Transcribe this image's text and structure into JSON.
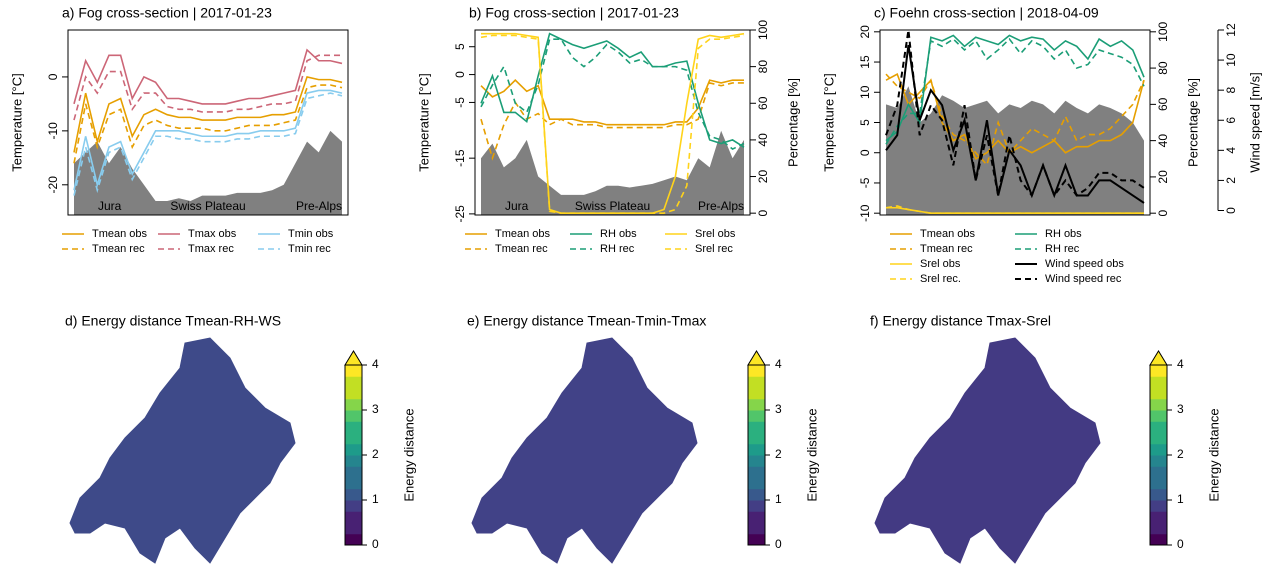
{
  "chart_data": [
    {
      "type": "line",
      "title": "a) Fog cross-section | 2017-01-23",
      "ylabel": "Temperature [°C]",
      "ylim": [
        -25.6,
        8.7
      ],
      "yticks": [
        -20,
        -10,
        0
      ],
      "legend_columns": 3,
      "annotations": [
        "Jura",
        "Swiss Plateau",
        "Pre-Alps"
      ],
      "terrain": {
        "color": "#808080",
        "values": [
          -16,
          -14,
          -12,
          -16,
          -13,
          -17,
          -20,
          -23,
          -23,
          -22.5,
          -23,
          -22,
          -22,
          -22,
          -21.5,
          -21.5,
          -21.5,
          -21,
          -20,
          -16,
          -12,
          -14,
          -10,
          -12
        ]
      },
      "series": [
        {
          "name": "Tmean obs",
          "color": "#E69F00",
          "linestyle": "solid",
          "values": [
            -14,
            -3,
            -12,
            -5,
            -4,
            -11,
            -7,
            -6,
            -7,
            -7.5,
            -7.5,
            -8,
            -8,
            -8,
            -7.5,
            -7.5,
            -7.5,
            -7,
            -7,
            -6.5,
            0,
            -0.5,
            -0.5,
            -1
          ]
        },
        {
          "name": "Tmean rec",
          "color": "#E69F00",
          "linestyle": "dashed",
          "values": [
            -16,
            -5,
            -13,
            -7,
            -6,
            -13,
            -9,
            -8,
            -9,
            -9.5,
            -9.5,
            -9.5,
            -10,
            -10,
            -9.5,
            -9,
            -9,
            -9,
            -8.5,
            -8,
            -2,
            -1.5,
            -1.5,
            -2
          ]
        },
        {
          "name": "Tmax obs",
          "color": "#CC6677",
          "linestyle": "solid",
          "values": [
            -5,
            3,
            -1,
            4,
            4,
            -4,
            0,
            -1,
            -4,
            -4,
            -4.5,
            -5,
            -5,
            -5,
            -4.5,
            -4,
            -4,
            -3.5,
            -3,
            -2.5,
            5,
            3,
            3,
            2.5
          ]
        },
        {
          "name": "Tmax rec",
          "color": "#CC6677",
          "linestyle": "dashed",
          "values": [
            -8,
            0,
            -3,
            1,
            1,
            -6,
            -3,
            -3,
            -5.5,
            -6,
            -6,
            -6.5,
            -6.5,
            -6.5,
            -6,
            -6,
            -5.5,
            -5,
            -5,
            -4.5,
            3,
            4,
            4,
            4
          ]
        },
        {
          "name": "Tmin obs",
          "color": "#88CCEE",
          "linestyle": "solid",
          "values": [
            -21,
            -11,
            -20,
            -13,
            -12,
            -18,
            -14,
            -10,
            -10,
            -10,
            -10.5,
            -11,
            -11,
            -11,
            -10.5,
            -10.5,
            -10,
            -10,
            -10,
            -9.5,
            -3,
            -2.5,
            -2.5,
            -3
          ]
        },
        {
          "name": "Tmin rec",
          "color": "#88CCEE",
          "linestyle": "dashed",
          "values": [
            -22,
            -13,
            -21,
            -14,
            -13,
            -19,
            -15,
            -11,
            -11,
            -11.5,
            -11.5,
            -12,
            -12,
            -12,
            -11.5,
            -11.5,
            -11,
            -11,
            -11,
            -10.5,
            -4,
            -3.5,
            -3,
            -3.5
          ]
        }
      ]
    },
    {
      "type": "line",
      "title": "b) Fog cross-section | 2017-01-23",
      "ylabel": "Temperature [°C]",
      "y2label": "Percentage [%]",
      "ylim": [
        -25.2,
        8
      ],
      "yticks": [
        -25,
        -15,
        -5,
        0,
        5
      ],
      "y2lim": [
        -1,
        100
      ],
      "y2ticks": [
        0,
        20,
        40,
        60,
        80,
        100
      ],
      "legend_columns": 3,
      "annotations": [
        "Jura",
        "Swiss Plateau",
        "Pre-Alps"
      ],
      "terrain": {
        "color": "#808080",
        "axis": "y2",
        "values": [
          30,
          38,
          25,
          30,
          40,
          20,
          15,
          10,
          10,
          10,
          12,
          15,
          15,
          14,
          15,
          16,
          18,
          20,
          18,
          30,
          25,
          45,
          30,
          40
        ]
      },
      "series": [
        {
          "name": "Tmean obs",
          "color": "#E69F00",
          "linestyle": "solid",
          "values": [
            -2,
            -4,
            -3,
            -1,
            -3,
            -2,
            -8,
            -8,
            -8,
            -8.5,
            -8.5,
            -9,
            -9,
            -9,
            -9,
            -9,
            -9,
            -8.5,
            -8.5,
            -6,
            -1,
            -1.5,
            -1,
            -1
          ]
        },
        {
          "name": "Tmean rec",
          "color": "#E69F00",
          "linestyle": "dashed",
          "values": [
            -8,
            -15,
            -9,
            -5,
            -8,
            -7,
            -9,
            -8,
            -9,
            -9,
            -9,
            -9.5,
            -9.5,
            -9.5,
            -9.5,
            -9.5,
            -9.5,
            -9,
            -9,
            -8,
            -1.5,
            -2,
            -1.5,
            -1.5
          ]
        },
        {
          "name": "RH obs",
          "color": "#1B9E77",
          "linestyle": "solid",
          "axis": "y2",
          "values": [
            60,
            75,
            55,
            55,
            50,
            75,
            98,
            95,
            92,
            90,
            92,
            94,
            90,
            85,
            88,
            80,
            80,
            82,
            83,
            60,
            40,
            38,
            40,
            36
          ]
        },
        {
          "name": "RH rec",
          "color": "#1B9E77",
          "linestyle": "dashed",
          "axis": "y2",
          "values": [
            58,
            70,
            80,
            60,
            55,
            70,
            95,
            95,
            85,
            80,
            85,
            92,
            88,
            82,
            84,
            80,
            80,
            80,
            78,
            55,
            42,
            40,
            35,
            38
          ]
        },
        {
          "name": "Srel obs",
          "color": "#FFD31A",
          "linestyle": "solid",
          "axis": "y2",
          "values": [
            98,
            98,
            98,
            98,
            97,
            96,
            2,
            0,
            0,
            0,
            0,
            0,
            0,
            0,
            0,
            0,
            2,
            20,
            60,
            95,
            97,
            96,
            97,
            98
          ]
        },
        {
          "name": "Srel rec",
          "color": "#FFD31A",
          "linestyle": "dashed",
          "axis": "y2",
          "values": [
            96,
            97,
            97,
            97,
            96,
            95,
            1,
            0,
            0,
            0,
            0,
            0,
            0,
            0,
            0,
            0,
            0,
            2,
            15,
            90,
            95,
            95,
            96,
            97
          ]
        }
      ]
    },
    {
      "type": "line",
      "title": "c) Foehn cross-section | 2018-04-09",
      "ylabel": "Temperature [°C]",
      "y2label": "Percentage [%]",
      "y3label": "Wind speed [m/s]",
      "ylim": [
        -10.3,
        20.3
      ],
      "yticks": [
        -10,
        -5,
        0,
        5,
        10,
        15,
        20
      ],
      "y2lim": [
        -1,
        101
      ],
      "y2ticks": [
        0,
        20,
        40,
        60,
        80,
        100
      ],
      "y3lim": [
        -0.3,
        12
      ],
      "y3ticks": [
        0,
        2,
        4,
        6,
        8,
        10,
        12
      ],
      "legend_columns": 2,
      "terrain": {
        "color": "#808080",
        "axis": "y2",
        "values": [
          60,
          58,
          70,
          50,
          55,
          65,
          62,
          58,
          60,
          62,
          55,
          60,
          58,
          62,
          60,
          55,
          62,
          58,
          55,
          60,
          58,
          55,
          50,
          40
        ]
      },
      "series": [
        {
          "name": "Tmean obs",
          "color": "#E69F00",
          "linestyle": "solid",
          "values": [
            12,
            13,
            8,
            10,
            12,
            5,
            2,
            3,
            -1,
            0,
            2,
            0,
            1,
            0,
            1,
            2,
            0,
            1,
            1,
            2,
            2,
            3,
            5,
            12
          ]
        },
        {
          "name": "Tmean rec",
          "color": "#E69F00",
          "linestyle": "dashed",
          "values": [
            13,
            11,
            10,
            9,
            12,
            6,
            3,
            2,
            0,
            -2,
            5,
            0,
            2,
            4,
            3,
            2,
            6,
            2,
            3,
            3,
            4,
            6,
            8,
            12
          ]
        },
        {
          "name": "Srel obs",
          "color": "#FFD31A",
          "linestyle": "solid",
          "axis": "y2",
          "values": [
            3,
            3,
            2,
            1,
            0,
            0,
            0,
            0,
            0,
            0,
            0,
            0,
            0,
            0,
            0,
            0,
            0,
            0,
            0,
            0,
            0,
            0,
            0,
            0
          ]
        },
        {
          "name": "Srel rec.",
          "color": "#FFD31A",
          "linestyle": "dashed",
          "axis": "y2",
          "values": [
            3,
            4,
            2,
            1,
            0,
            0,
            0,
            0,
            0,
            0,
            0,
            0,
            0,
            0,
            0,
            0,
            0,
            0,
            0,
            0,
            0,
            0,
            0,
            0
          ]
        },
        {
          "name": "RH obs",
          "color": "#1B9E77",
          "linestyle": "solid",
          "axis": "y2",
          "values": [
            40,
            45,
            60,
            50,
            97,
            95,
            98,
            92,
            97,
            95,
            93,
            98,
            95,
            97,
            96,
            90,
            95,
            92,
            85,
            96,
            92,
            95,
            90,
            75
          ]
        },
        {
          "name": "RH rec",
          "color": "#1B9E77",
          "linestyle": "dashed",
          "axis": "y2",
          "values": [
            38,
            48,
            55,
            55,
            95,
            92,
            96,
            90,
            95,
            85,
            90,
            96,
            88,
            95,
            92,
            85,
            90,
            80,
            82,
            90,
            88,
            86,
            82,
            70
          ]
        },
        {
          "name": "Wind speed obs",
          "color": "#000000",
          "linestyle": "solid",
          "axis": "y3",
          "values": [
            4,
            5,
            11,
            6,
            8,
            7,
            4,
            6,
            2,
            6,
            1,
            4,
            3,
            1,
            3,
            1,
            3,
            1,
            1,
            2,
            2,
            1.5,
            1,
            0.5
          ]
        },
        {
          "name": "Wind speed rec",
          "color": "#000000",
          "linestyle": "dashed",
          "axis": "y3",
          "values": [
            5,
            7,
            12,
            5,
            7,
            6,
            3,
            7,
            2,
            5,
            1,
            5,
            2,
            1,
            3,
            1,
            2,
            1,
            1.5,
            2.5,
            2.5,
            2,
            2,
            1.5
          ]
        }
      ]
    },
    {
      "type": "map",
      "title": "d) Energy distance Tmean-RH-WS",
      "color": "#3E4A89",
      "colorbar": {
        "label": "Energy distance",
        "zlim": [
          0,
          4
        ],
        "ticks": [
          0,
          1,
          2,
          3,
          4
        ]
      }
    },
    {
      "type": "map",
      "title": "e) Energy distance Tmean-Tmin-Tmax",
      "color": "#414287",
      "colorbar": {
        "label": "Energy distance",
        "zlim": [
          0,
          4
        ],
        "ticks": [
          0,
          1,
          2,
          3,
          4
        ]
      }
    },
    {
      "type": "map",
      "title": "f) Energy distance Tmax-Srel",
      "color": "#433A83",
      "colorbar": {
        "label": "Energy distance",
        "zlim": [
          0,
          4
        ],
        "ticks": [
          0,
          1,
          2,
          3,
          4
        ]
      }
    }
  ]
}
